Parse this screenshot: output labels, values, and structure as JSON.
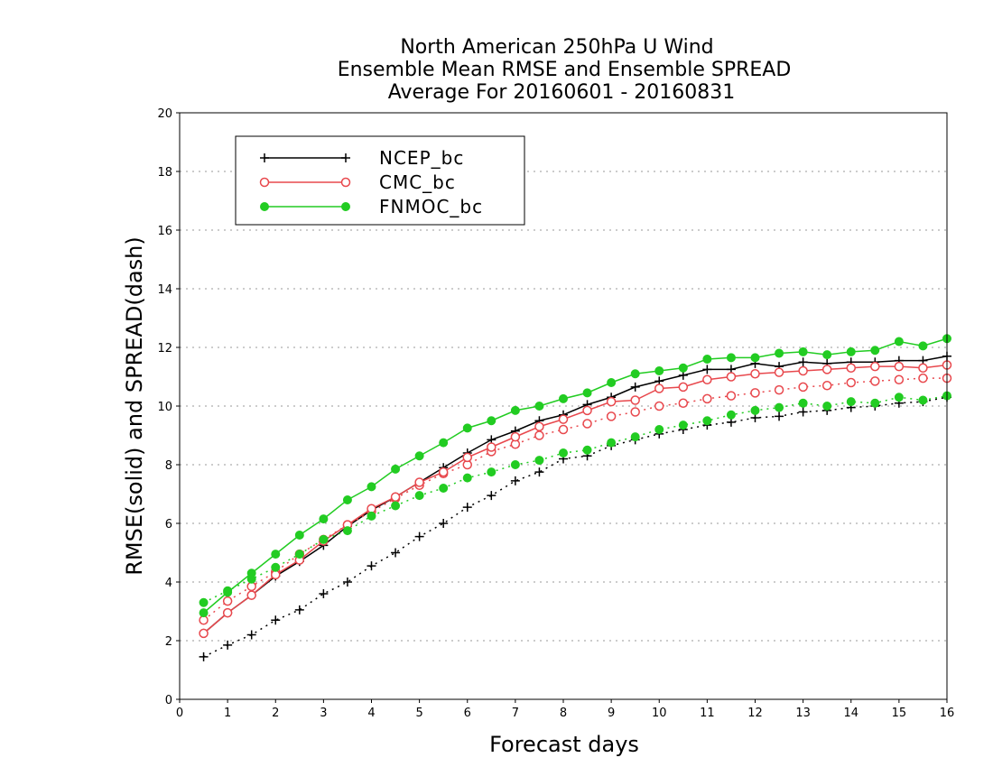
{
  "chart_data": {
    "type": "line",
    "title_lines": [
      "North American 250hPa U Wind",
      "Ensemble Mean RMSE and Ensemble SPREAD",
      "Average For 20160601 - 20160831"
    ],
    "xlabel": "Forecast days",
    "ylabel": "RMSE(solid) and SPREAD(dash)",
    "xlim": [
      0,
      16
    ],
    "ylim": [
      0,
      20
    ],
    "x_ticks": [
      0,
      1,
      2,
      3,
      4,
      5,
      6,
      7,
      8,
      9,
      10,
      11,
      12,
      13,
      14,
      15,
      16
    ],
    "y_ticks": [
      0,
      2,
      4,
      6,
      8,
      10,
      12,
      14,
      16,
      18,
      20
    ],
    "grid": "horizontal dotted",
    "legend_position": "top-left",
    "x": [
      0.5,
      1,
      1.5,
      2,
      2.5,
      3,
      3.5,
      4,
      4.5,
      5,
      5.5,
      6,
      6.5,
      7,
      7.5,
      8,
      8.5,
      9,
      9.5,
      10,
      10.5,
      11,
      11.5,
      12,
      12.5,
      13,
      13.5,
      14,
      14.5,
      15,
      15.5,
      16
    ],
    "series": [
      {
        "name": "NCEP_bc",
        "color": "#000000",
        "marker": "plus",
        "rmse": [
          2.25,
          2.95,
          3.55,
          4.2,
          4.7,
          5.25,
          5.9,
          6.45,
          6.9,
          7.4,
          7.9,
          8.4,
          8.85,
          9.15,
          9.5,
          9.7,
          10.05,
          10.3,
          10.65,
          10.85,
          11.05,
          11.25,
          11.25,
          11.45,
          11.35,
          11.5,
          11.45,
          11.5,
          11.5,
          11.55,
          11.55,
          11.7
        ],
        "spread": [
          1.45,
          1.85,
          2.2,
          2.7,
          3.05,
          3.6,
          4.0,
          4.55,
          5.0,
          5.55,
          6.0,
          6.55,
          6.95,
          7.45,
          7.75,
          8.2,
          8.3,
          8.65,
          8.85,
          9.05,
          9.2,
          9.35,
          9.45,
          9.6,
          9.65,
          9.8,
          9.85,
          9.95,
          10.0,
          10.1,
          10.15,
          10.3
        ]
      },
      {
        "name": "CMC_bc",
        "color": "#e8484d",
        "marker": "open-circle",
        "rmse": [
          2.25,
          2.95,
          3.55,
          4.25,
          4.75,
          5.4,
          5.95,
          6.5,
          6.9,
          7.4,
          7.75,
          8.25,
          8.6,
          8.95,
          9.3,
          9.55,
          9.85,
          10.15,
          10.2,
          10.6,
          10.65,
          10.9,
          11.0,
          11.1,
          11.15,
          11.2,
          11.25,
          11.3,
          11.35,
          11.35,
          11.3,
          11.4
        ],
        "spread": [
          2.7,
          3.35,
          3.85,
          4.35,
          4.95,
          5.45,
          5.95,
          6.4,
          6.85,
          7.3,
          7.7,
          8.0,
          8.45,
          8.7,
          9.0,
          9.2,
          9.4,
          9.65,
          9.8,
          10.0,
          10.1,
          10.25,
          10.35,
          10.45,
          10.55,
          10.65,
          10.7,
          10.8,
          10.85,
          10.9,
          10.95,
          10.95
        ]
      },
      {
        "name": "FNMOC_bc",
        "color": "#22cc22",
        "marker": "filled-circle",
        "rmse": [
          2.95,
          3.65,
          4.3,
          4.95,
          5.6,
          6.15,
          6.8,
          7.25,
          7.85,
          8.3,
          8.75,
          9.25,
          9.5,
          9.85,
          10.0,
          10.25,
          10.45,
          10.8,
          11.1,
          11.2,
          11.3,
          11.6,
          11.65,
          11.65,
          11.8,
          11.85,
          11.75,
          11.85,
          11.9,
          12.2,
          12.05,
          12.3
        ],
        "spread": [
          3.3,
          3.7,
          4.1,
          4.5,
          4.95,
          5.45,
          5.75,
          6.25,
          6.6,
          6.95,
          7.2,
          7.55,
          7.75,
          8.0,
          8.15,
          8.4,
          8.5,
          8.75,
          8.95,
          9.2,
          9.35,
          9.5,
          9.7,
          9.85,
          9.95,
          10.1,
          10.0,
          10.15,
          10.1,
          10.3,
          10.2,
          10.35
        ]
      }
    ]
  }
}
